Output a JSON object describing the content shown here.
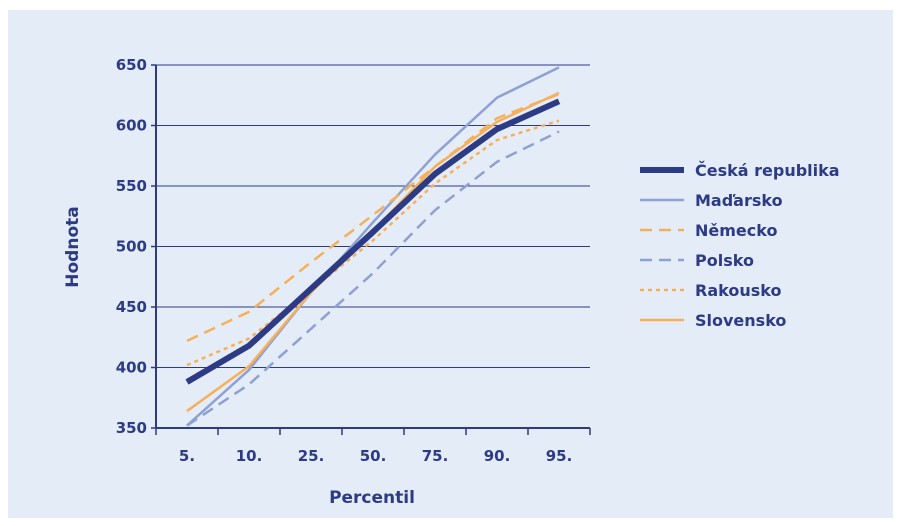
{
  "chart_data": {
    "type": "line",
    "categories": [
      "5.",
      "10.",
      "25.",
      "50.",
      "75.",
      "90.",
      "95."
    ],
    "xlabel": "Percentil",
    "ylabel": "Hodnota",
    "ylim": [
      350,
      650
    ],
    "yticks": [
      350,
      400,
      450,
      500,
      550,
      600,
      650
    ],
    "grid": true,
    "legend": "right",
    "series": [
      {
        "name": "Česká republika",
        "values": [
          388,
          418,
          465,
          512,
          560,
          597,
          620
        ],
        "color": "#2d3a84",
        "style": "solid-thick"
      },
      {
        "name": "Maďarsko",
        "values": [
          352,
          398,
          462,
          520,
          576,
          623,
          648
        ],
        "color": "#8fa0d3",
        "style": "solid"
      },
      {
        "name": "Německo",
        "values": [
          422,
          446,
          487,
          526,
          566,
          606,
          626
        ],
        "color": "#f6b05a",
        "style": "dashed"
      },
      {
        "name": "Polsko",
        "values": [
          352,
          386,
          432,
          478,
          530,
          570,
          595
        ],
        "color": "#8fa0d3",
        "style": "dashed"
      },
      {
        "name": "Rakousko",
        "values": [
          402,
          424,
          464,
          505,
          552,
          588,
          604
        ],
        "color": "#f6b05a",
        "style": "dotted"
      },
      {
        "name": "Slovensko",
        "values": [
          364,
          401,
          462,
          513,
          566,
          603,
          627
        ],
        "color": "#f6b05a",
        "style": "solid"
      }
    ]
  }
}
